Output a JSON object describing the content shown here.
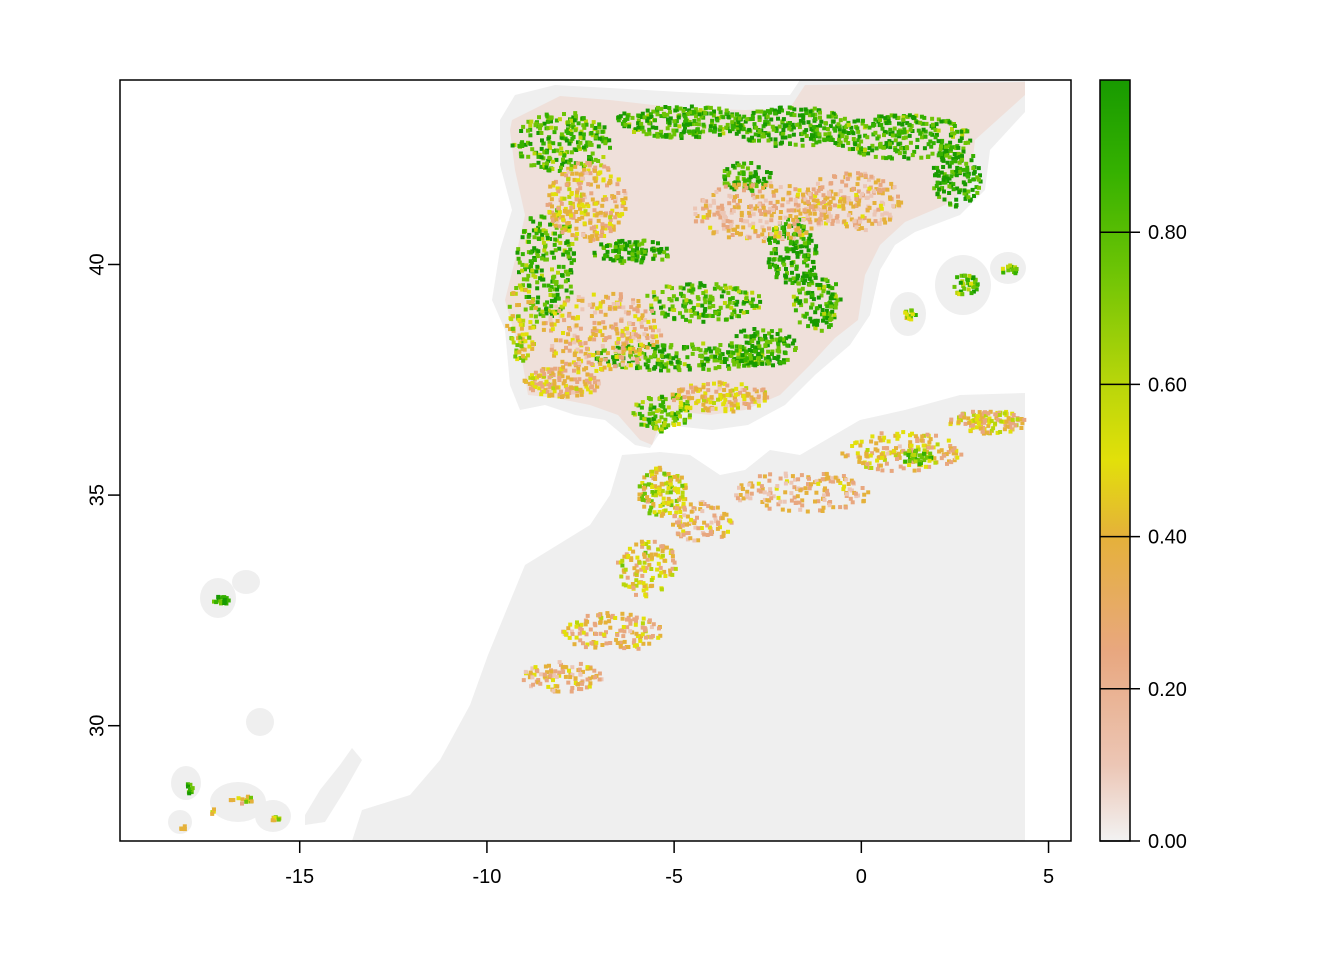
{
  "chart_data": {
    "type": "raster-map",
    "title": "",
    "xlabel": "",
    "ylabel": "",
    "x_axis": {
      "ticks": [
        -15,
        -10,
        -5,
        0,
        5
      ],
      "labels": [
        "-15",
        "-10",
        "-5",
        "0",
        "5"
      ],
      "range": [
        -19.8,
        5.6
      ]
    },
    "y_axis": {
      "ticks": [
        30,
        35,
        40
      ],
      "labels": [
        "30",
        "35",
        "40"
      ],
      "range": [
        27.5,
        44.0
      ]
    },
    "colorbar": {
      "min": 0.0,
      "max": 1.0,
      "ticks": [
        0.0,
        0.2,
        0.4,
        0.6,
        0.8
      ],
      "labels": [
        "0.00",
        "0.20",
        "0.40",
        "0.60",
        "0.80"
      ],
      "stops": [
        {
          "value": 0.0,
          "color": "#f2f2f2"
        },
        {
          "value": 0.1,
          "color": "#ecc6b5"
        },
        {
          "value": 0.25,
          "color": "#e8a77f"
        },
        {
          "value": 0.4,
          "color": "#e5b13a"
        },
        {
          "value": 0.5,
          "color": "#e2e00a"
        },
        {
          "value": 0.6,
          "color": "#b9d60a"
        },
        {
          "value": 0.75,
          "color": "#6dc405"
        },
        {
          "value": 0.88,
          "color": "#35b100"
        },
        {
          "value": 1.0,
          "color": "#189a00"
        }
      ]
    },
    "legend_position": "right",
    "grid": false,
    "land_background_color": "#efefef"
  }
}
